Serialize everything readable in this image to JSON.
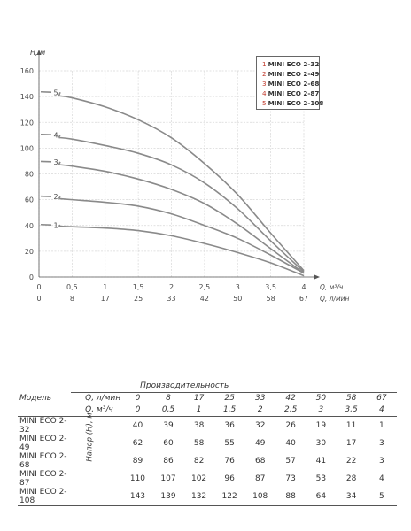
{
  "chart_data": {
    "type": "line",
    "ylabel": "H, м",
    "xlabel_primary": "Q, м³/ч",
    "xlabel_secondary": "Q, л/мин",
    "ylim": [
      0,
      160
    ],
    "xlim": [
      0,
      4
    ],
    "y_ticks": [
      "0",
      "20",
      "40",
      "60",
      "80",
      "100",
      "120",
      "140",
      "160"
    ],
    "x_ticks_primary": [
      "0",
      "0,5",
      "1",
      "1,5",
      "2",
      "2,5",
      "3",
      "3,5",
      "4"
    ],
    "x_ticks_secondary": [
      "0",
      "8",
      "17",
      "25",
      "33",
      "42",
      "50",
      "58",
      "67"
    ],
    "grid": true,
    "legend_position": "top-right",
    "x": [
      0,
      0.5,
      1,
      1.5,
      2,
      2.5,
      3,
      3.5,
      4
    ],
    "series": [
      {
        "name": "MINI ECO 2-32",
        "label": "1",
        "values": [
          40,
          39,
          38,
          36,
          32,
          26,
          19,
          11,
          1
        ]
      },
      {
        "name": "MINI ECO 2-49",
        "label": "2",
        "values": [
          62,
          60,
          58,
          55,
          49,
          40,
          30,
          17,
          3
        ]
      },
      {
        "name": "MINI ECO 2-68",
        "label": "3",
        "values": [
          89,
          86,
          82,
          76,
          68,
          57,
          41,
          22,
          3
        ]
      },
      {
        "name": "MINI ECO 2-87",
        "label": "4",
        "values": [
          110,
          107,
          102,
          96,
          87,
          73,
          53,
          28,
          4
        ]
      },
      {
        "name": "MINI ECO 2-108",
        "label": "5",
        "values": [
          143,
          139,
          132,
          122,
          108,
          88,
          64,
          34,
          5
        ]
      }
    ]
  },
  "legend": [
    {
      "num": "1",
      "name": "MINI ECO 2-32"
    },
    {
      "num": "2",
      "name": "MINI ECO 2-49"
    },
    {
      "num": "3",
      "name": "MINI ECO 2-68"
    },
    {
      "num": "4",
      "name": "MINI ECO 2-87"
    },
    {
      "num": "5",
      "name": "MINI ECO 2-108"
    }
  ],
  "table": {
    "model_header": "Модель",
    "perf_header": "Производительность",
    "q_lmin_label": "Q, л/мин",
    "q_m3h_label": "Q, м³/ч",
    "head_label": "Напор (H), м",
    "q_lmin": [
      "0",
      "8",
      "17",
      "25",
      "33",
      "42",
      "50",
      "58",
      "67"
    ],
    "q_m3h": [
      "0",
      "0,5",
      "1",
      "1,5",
      "2",
      "2,5",
      "3",
      "3,5",
      "4"
    ],
    "rows": [
      {
        "model": "MINI ECO 2-32",
        "values": [
          "40",
          "39",
          "38",
          "36",
          "32",
          "26",
          "19",
          "11",
          "1"
        ]
      },
      {
        "model": "MINI ECO 2-49",
        "values": [
          "62",
          "60",
          "58",
          "55",
          "49",
          "40",
          "30",
          "17",
          "3"
        ]
      },
      {
        "model": "MINI ECO 2-68",
        "values": [
          "89",
          "86",
          "82",
          "76",
          "68",
          "57",
          "41",
          "22",
          "3"
        ]
      },
      {
        "model": "MINI ECO 2-87",
        "values": [
          "110",
          "107",
          "102",
          "96",
          "87",
          "73",
          "53",
          "28",
          "4"
        ]
      },
      {
        "model": "MINI ECO 2-108",
        "values": [
          "143",
          "139",
          "132",
          "122",
          "108",
          "88",
          "64",
          "34",
          "5"
        ]
      }
    ]
  },
  "colors": {
    "curve": "#8a8a8a",
    "grid": "#d8d8d8",
    "axis": "#555555",
    "legend_number": "#c0392b"
  }
}
